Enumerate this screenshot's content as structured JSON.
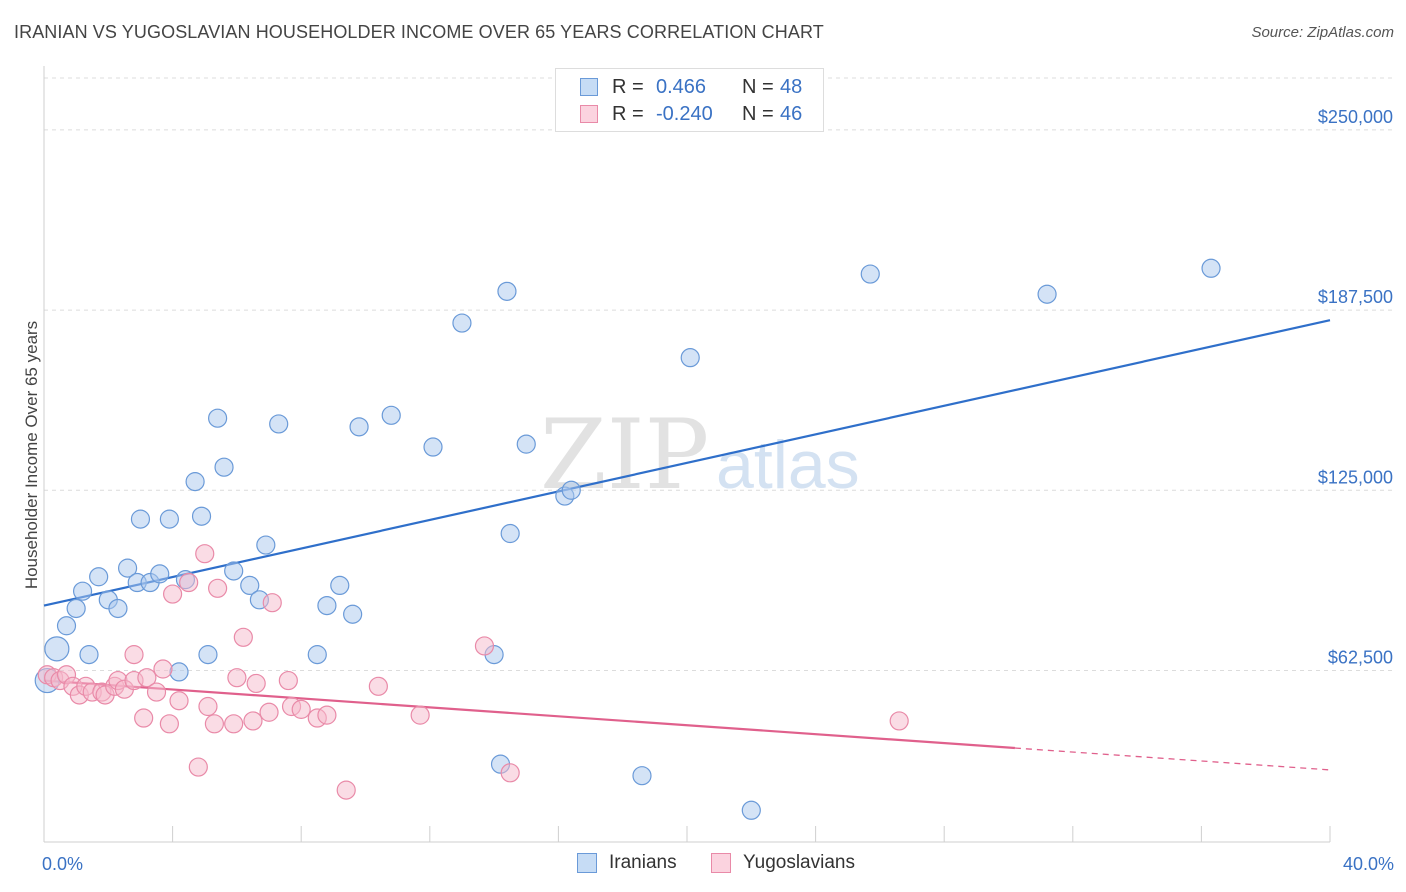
{
  "title": "IRANIAN VS YUGOSLAVIAN HOUSEHOLDER INCOME OVER 65 YEARS CORRELATION CHART",
  "source": "Source: ZipAtlas.com",
  "watermark": {
    "zip": "ZIP",
    "atlas": "atlas"
  },
  "legend": {
    "rows": [
      {
        "r_label": "R =",
        "r_value": "0.466",
        "n_label": "N =",
        "n_value": "48"
      },
      {
        "r_label": "R =",
        "r_value": "-0.240",
        "n_label": "N =",
        "n_value": "46"
      }
    ]
  },
  "colors": {
    "iranians_fill": "#a9c8ee",
    "iranians_stroke": "#6a9ad8",
    "iranians_line": "#2f6fca",
    "yugoslavians_fill": "#f6b9cc",
    "yugoslavians_stroke": "#e98aa8",
    "yugoslavians_line": "#e0608c",
    "tick_label": "#3a72c4"
  },
  "chart_data": {
    "type": "scatter",
    "title": "IRANIAN VS YUGOSLAVIAN HOUSEHOLDER INCOME OVER 65 YEARS CORRELATION CHART",
    "xlabel": "",
    "ylabel": "Householder Income Over 65 years",
    "xlim": [
      0,
      40
    ],
    "ylim": [
      3000,
      268000
    ],
    "x_tick_labels": [
      "0.0%",
      "40.0%"
    ],
    "y_ticks": [
      62500,
      125000,
      187500,
      250000
    ],
    "y_tick_labels": [
      "$62,500",
      "$125,000",
      "$187,500",
      "$250,000"
    ],
    "grid": "horizontal dashed",
    "legend_position": "top-center",
    "series": [
      {
        "name": "Iranians",
        "r": 0.466,
        "n": 48,
        "trend": {
          "x": [
            0,
            40
          ],
          "y": [
            85000,
            184000
          ],
          "solid_to": 40
        },
        "points": [
          [
            0.1,
            59000
          ],
          [
            0.4,
            70000
          ],
          [
            0.7,
            78000
          ],
          [
            1.0,
            84000
          ],
          [
            1.2,
            90000
          ],
          [
            1.4,
            68000
          ],
          [
            1.7,
            95000
          ],
          [
            2.0,
            87000
          ],
          [
            2.3,
            84000
          ],
          [
            2.6,
            98000
          ],
          [
            2.9,
            93000
          ],
          [
            3.0,
            115000
          ],
          [
            3.3,
            93000
          ],
          [
            3.6,
            96000
          ],
          [
            3.9,
            115000
          ],
          [
            4.2,
            62000
          ],
          [
            4.4,
            94000
          ],
          [
            4.7,
            128000
          ],
          [
            4.9,
            116000
          ],
          [
            5.1,
            68000
          ],
          [
            5.4,
            150000
          ],
          [
            5.6,
            133000
          ],
          [
            5.9,
            97000
          ],
          [
            6.4,
            92000
          ],
          [
            6.7,
            87000
          ],
          [
            6.9,
            106000
          ],
          [
            7.3,
            148000
          ],
          [
            8.5,
            68000
          ],
          [
            8.8,
            85000
          ],
          [
            9.2,
            92000
          ],
          [
            9.6,
            82000
          ],
          [
            9.8,
            147000
          ],
          [
            10.8,
            151000
          ],
          [
            12.1,
            140000
          ],
          [
            13.0,
            183000
          ],
          [
            14.0,
            68000
          ],
          [
            14.2,
            30000
          ],
          [
            14.4,
            194000
          ],
          [
            14.5,
            110000
          ],
          [
            15.0,
            141000
          ],
          [
            16.2,
            123000
          ],
          [
            16.4,
            125000
          ],
          [
            18.6,
            26000
          ],
          [
            20.1,
            171000
          ],
          [
            22.0,
            14000
          ],
          [
            25.7,
            200000
          ],
          [
            31.2,
            193000
          ],
          [
            36.3,
            202000
          ]
        ]
      },
      {
        "name": "Yugoslavians",
        "r": -0.24,
        "n": 46,
        "trend": {
          "x": [
            0,
            40
          ],
          "y": [
            59000,
            28000
          ],
          "solid_to": 30.2
        },
        "points": [
          [
            0.1,
            61000
          ],
          [
            0.3,
            60000
          ],
          [
            0.5,
            59000
          ],
          [
            0.7,
            61000
          ],
          [
            0.9,
            57000
          ],
          [
            1.1,
            54000
          ],
          [
            1.3,
            57000
          ],
          [
            1.5,
            55000
          ],
          [
            1.8,
            55000
          ],
          [
            1.9,
            54000
          ],
          [
            2.2,
            57000
          ],
          [
            2.3,
            59000
          ],
          [
            2.5,
            56000
          ],
          [
            2.8,
            59000
          ],
          [
            2.8,
            68000
          ],
          [
            3.1,
            46000
          ],
          [
            3.2,
            60000
          ],
          [
            3.5,
            55000
          ],
          [
            3.7,
            63000
          ],
          [
            3.9,
            44000
          ],
          [
            4.0,
            89000
          ],
          [
            4.2,
            52000
          ],
          [
            4.5,
            93000
          ],
          [
            4.8,
            29000
          ],
          [
            5.0,
            103000
          ],
          [
            5.1,
            50000
          ],
          [
            5.3,
            44000
          ],
          [
            5.4,
            91000
          ],
          [
            5.9,
            44000
          ],
          [
            6.0,
            60000
          ],
          [
            6.2,
            74000
          ],
          [
            6.5,
            45000
          ],
          [
            6.6,
            58000
          ],
          [
            7.0,
            48000
          ],
          [
            7.1,
            86000
          ],
          [
            7.6,
            59000
          ],
          [
            7.7,
            50000
          ],
          [
            8.0,
            49000
          ],
          [
            8.5,
            46000
          ],
          [
            8.8,
            47000
          ],
          [
            9.4,
            21000
          ],
          [
            10.4,
            57000
          ],
          [
            11.7,
            47000
          ],
          [
            13.7,
            71000
          ],
          [
            14.5,
            27000
          ],
          [
            26.6,
            45000
          ]
        ]
      }
    ]
  },
  "bottom_legend": [
    "Iranians",
    "Yugoslavians"
  ]
}
